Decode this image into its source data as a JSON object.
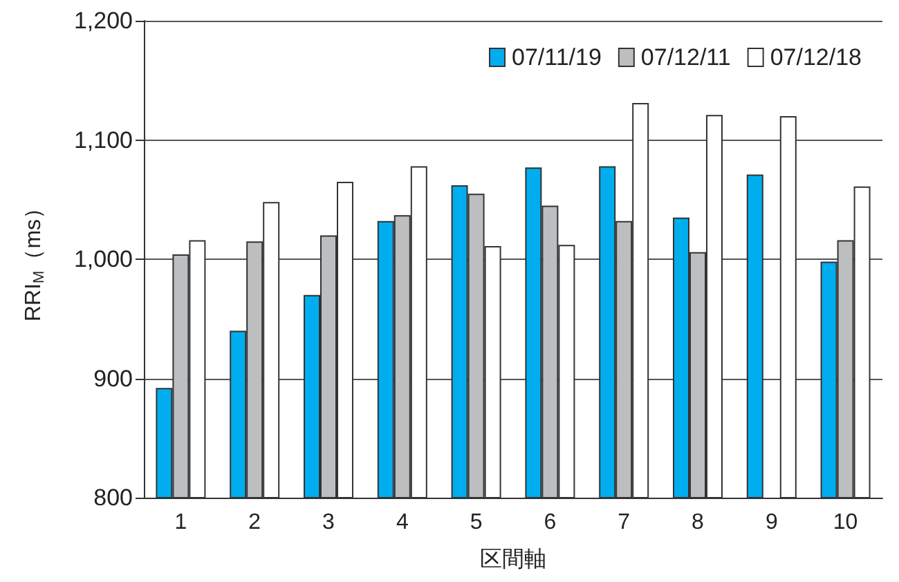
{
  "chart_data": {
    "type": "bar",
    "xlabel": "区間軸",
    "ylabel": "RRI$_{M}$（ms）",
    "categories": [
      "1",
      "2",
      "3",
      "4",
      "5",
      "6",
      "7",
      "8",
      "9",
      "10"
    ],
    "series": [
      {
        "name": "07/11/19",
        "color": "#00aeef",
        "values": [
          892,
          940,
          970,
          1032,
          1062,
          1077,
          1078,
          1035,
          1071,
          998
        ]
      },
      {
        "name": "07/12/11",
        "color": "#bcbec0",
        "values": [
          1004,
          1015,
          1020,
          1037,
          1055,
          1045,
          1032,
          1006,
          null,
          1016
        ]
      },
      {
        "name": "07/12/18",
        "color": "#ffffff",
        "values": [
          1016,
          1048,
          1065,
          1078,
          1011,
          1012,
          1131,
          1121,
          1120,
          1061
        ]
      }
    ],
    "ylim": [
      800,
      1200
    ],
    "yticks": [
      {
        "value": 800,
        "label": "800"
      },
      {
        "value": 900,
        "label": "900"
      },
      {
        "value": 1000,
        "label": "1,000"
      },
      {
        "value": 1100,
        "label": "1,100"
      },
      {
        "value": 1200,
        "label": "1,200"
      }
    ],
    "grid": "y",
    "legend": "top right"
  }
}
